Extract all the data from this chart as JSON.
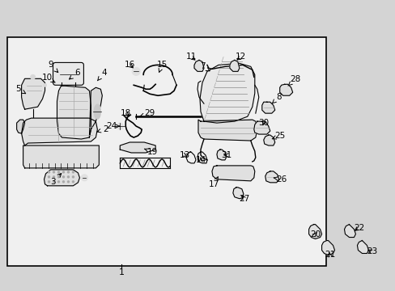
{
  "bg_color": "#d4d4d4",
  "box_color": "#f0f0f0",
  "border_color": "#000000",
  "line_color": "#000000",
  "text_color": "#000000",
  "figure_width": 4.89,
  "figure_height": 3.6,
  "dpi": 100
}
